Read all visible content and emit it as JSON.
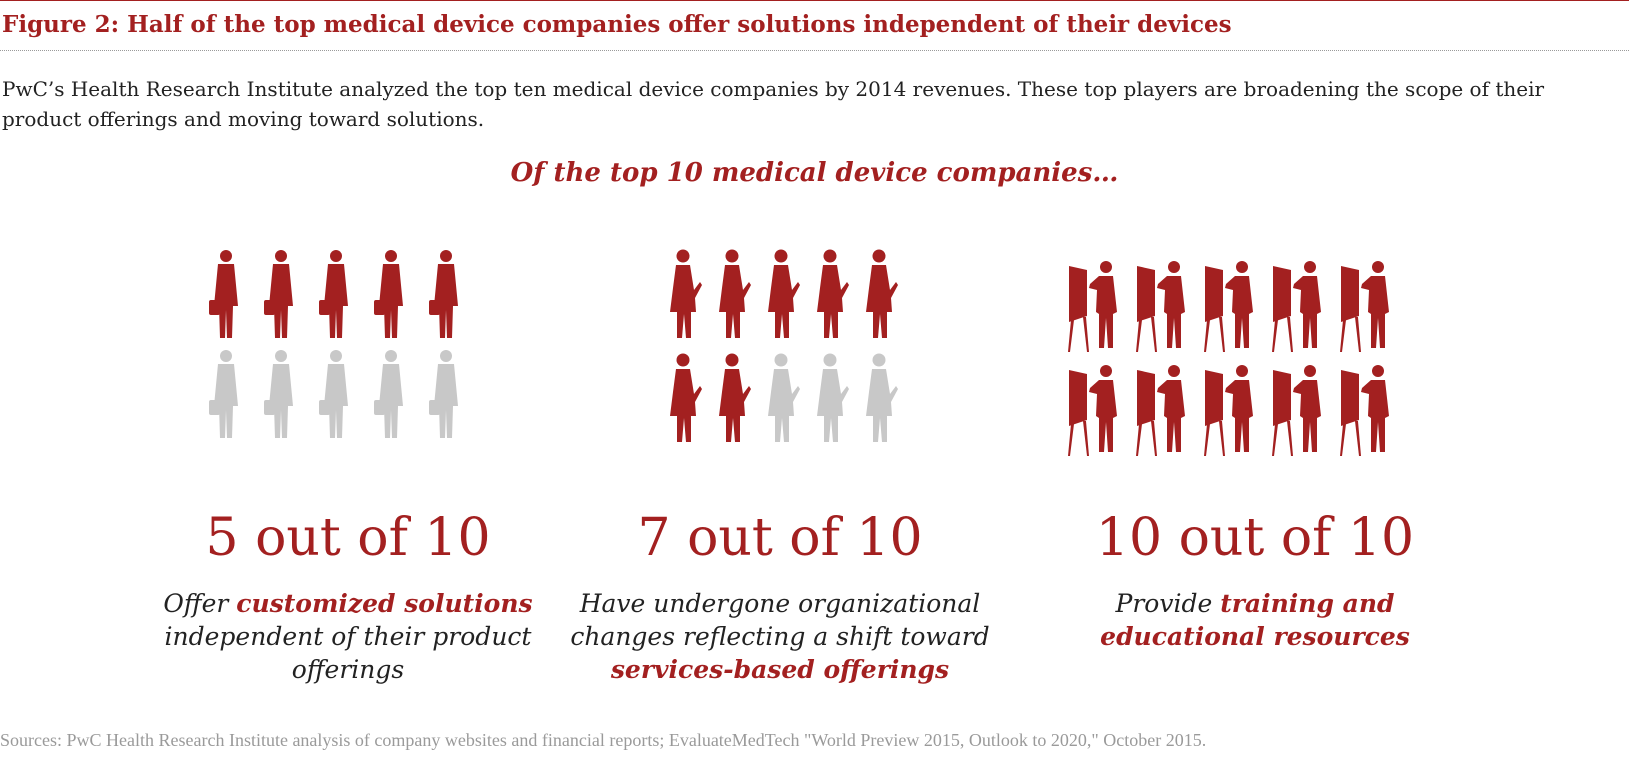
{
  "title": "Figure 2: Half of the top medical device companies offer solutions independent of their devices",
  "intro": "PwC’s Health Research Institute analyzed the top ten medical device companies by 2014 revenues. These top players are broadening the scope of their product offerings and moving toward solutions.",
  "subtitle": "Of the top 10 medical device companies…",
  "sources": "Sources: PwC Health Research Institute analysis of company websites and financial reports; EvaluateMedTech \"World Preview 2015, Outlook to 2020,\" October 2015.",
  "colors": {
    "accent": "#a32020",
    "inactive": "#c8c8c8",
    "text": "#222222",
    "muted": "#9a9a9a"
  },
  "chart_data": [
    {
      "type": "pictogram",
      "icon": "businessman-with-briefcase-icon",
      "value": 5,
      "total": 10,
      "headline": "5 out of 10",
      "desc": [
        {
          "text": "Offer ",
          "highlight": false
        },
        {
          "text": "customized solutions",
          "highlight": true
        },
        {
          "text": " independent of their product offerings",
          "highlight": false
        }
      ]
    },
    {
      "type": "pictogram",
      "icon": "woman-presenting-icon",
      "value": 7,
      "total": 10,
      "headline": "7 out of 10",
      "desc": [
        {
          "text": "Have undergone organizational changes reflecting a shift toward ",
          "highlight": false
        },
        {
          "text": "services-based offerings",
          "highlight": true
        }
      ]
    },
    {
      "type": "pictogram",
      "icon": "presenter-at-easel-icon",
      "value": 10,
      "total": 10,
      "headline": "10 out of 10",
      "desc": [
        {
          "text": "Provide ",
          "highlight": false
        },
        {
          "text": "training and educational resources",
          "highlight": true
        }
      ]
    }
  ]
}
